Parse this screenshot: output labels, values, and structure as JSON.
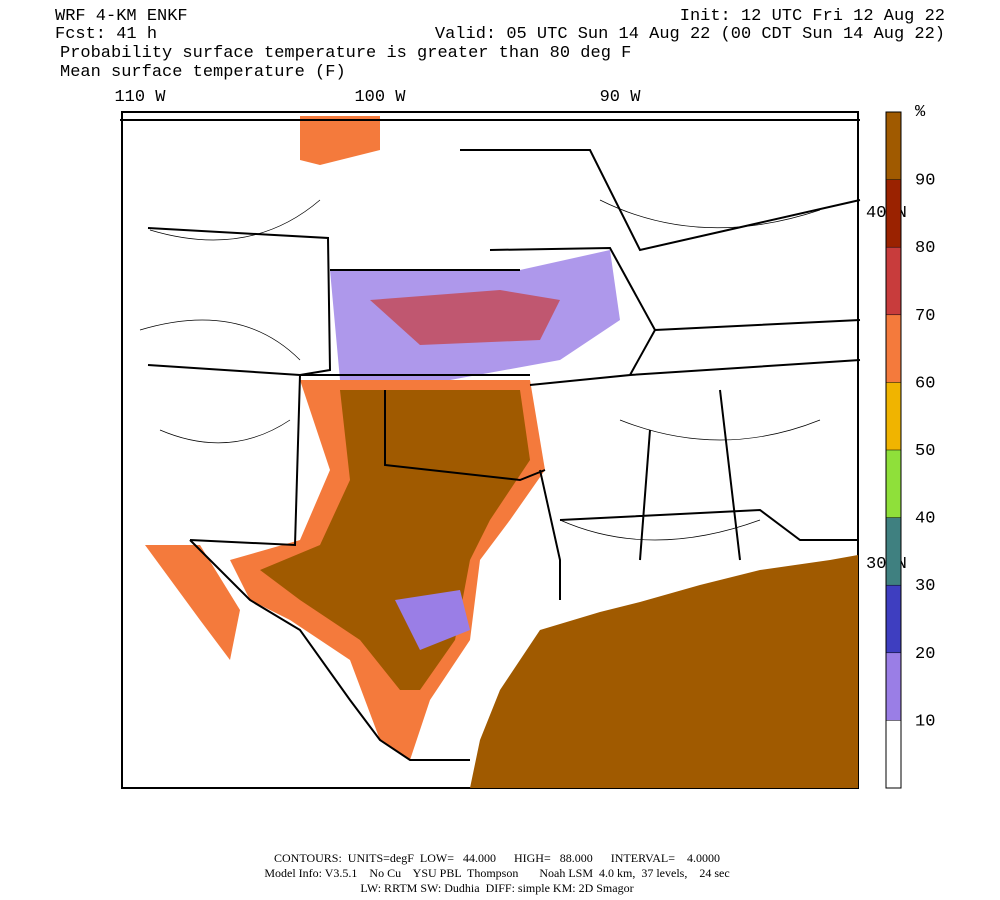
{
  "header": {
    "model": "WRF 4-KM ENKF",
    "init": "Init: 12 UTC Fri 12 Aug 22",
    "forecast": "Fcst:   41 h",
    "valid": "Valid: 05 UTC Sun 14 Aug 22 (00 CDT Sun 14 Aug 22)",
    "field1": "Probability surface temperature is greater than 80 deg F",
    "field2": "Mean surface temperature (F)"
  },
  "map": {
    "lon_labels": [
      "110 W",
      "100 W",
      "90 W"
    ],
    "lat_labels": [
      "40 N",
      "30 N"
    ]
  },
  "colorbar": {
    "unit": "%",
    "lim": [
      0,
      100
    ],
    "ticks": [
      10,
      20,
      30,
      40,
      50,
      60,
      70,
      80,
      90
    ],
    "colors": [
      "#ffffff",
      "#9a7ee6",
      "#3e3ec0",
      "#3f8080",
      "#8fe03a",
      "#f0b400",
      "#f47a3c",
      "#c83c3c",
      "#9a2200",
      "#a05a00"
    ]
  },
  "footer": [
    "CONTOURS:  UNITS=degF  LOW=   44.000      HIGH=   88.000      INTERVAL=    4.0000",
    "Model Info: V3.5.1    No Cu    YSU PBL  Thompson       Noah LSM  4.0 km,  37 levels,    24 sec",
    "LW: RRTM SW: Dudhia  DIFF: simple KM: 2D Smagor"
  ]
}
